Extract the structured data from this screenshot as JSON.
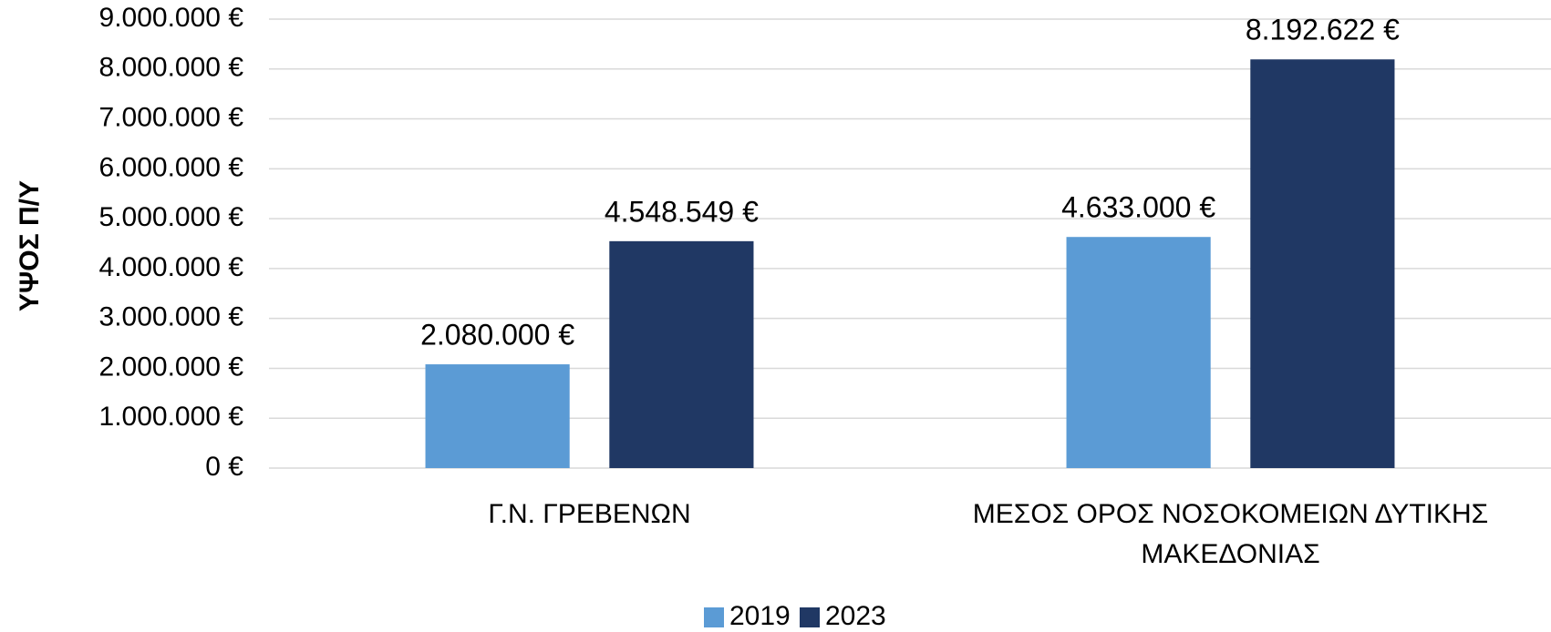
{
  "chart_data": {
    "type": "bar",
    "y_label": "ΥΨΟΣ Π/Υ",
    "categories": [
      "Γ.Ν. ΓΡΕΒΕΝΩΝ",
      "ΜΕΣΟΣ ΟΡΟΣ ΝΟΣΟΚΟΜΕΙΩΝ ΔΥΤΙΚΗΣ ΜΑΚΕΔΟΝΙΑΣ"
    ],
    "series": [
      {
        "name": "2019",
        "color": "#5b9bd5",
        "values": [
          2080000,
          4633000
        ],
        "value_labels": [
          "2.080.000 €",
          "4.633.000 €"
        ]
      },
      {
        "name": "2023",
        "color": "#203864",
        "values": [
          4548549,
          8192622
        ],
        "value_labels": [
          "4.548.549 €",
          "8.192.622 €"
        ]
      }
    ],
    "ylim": [
      0,
      9000000
    ],
    "yticks": [
      {
        "value": 0,
        "label": "0 €"
      },
      {
        "value": 1000000,
        "label": "1.000.000 €"
      },
      {
        "value": 2000000,
        "label": "2.000.000 €"
      },
      {
        "value": 3000000,
        "label": "3.000.000 €"
      },
      {
        "value": 4000000,
        "label": "4.000.000 €"
      },
      {
        "value": 5000000,
        "label": "5.000.000 €"
      },
      {
        "value": 6000000,
        "label": "6.000.000 €"
      },
      {
        "value": 7000000,
        "label": "7.000.000 €"
      },
      {
        "value": 8000000,
        "label": "8.000.000 €"
      },
      {
        "value": 9000000,
        "label": "9.000.000 €"
      }
    ],
    "grid": true,
    "legend": "bottom"
  }
}
